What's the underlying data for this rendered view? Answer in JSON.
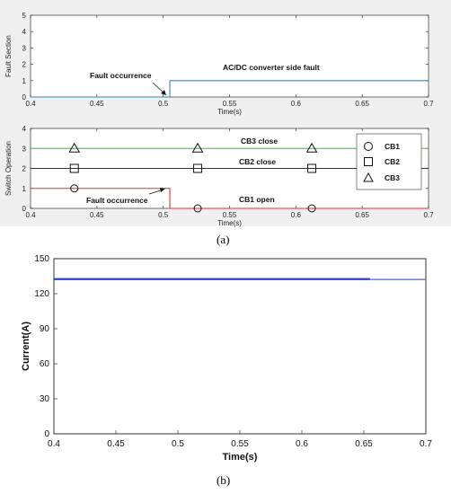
{
  "panel_labels": {
    "a": "(a)",
    "b": "(b)"
  },
  "chart_data": [
    {
      "id": "a1",
      "type": "line",
      "title": "",
      "xlabel": "Time(s)",
      "ylabel": "Fault Section",
      "xlim": [
        0.4,
        0.7
      ],
      "ylim": [
        0,
        5
      ],
      "xticks": [
        "0.4",
        "0.45",
        "0.5",
        "0.55",
        "0.6",
        "0.65",
        "0.7"
      ],
      "yticks": [
        "0",
        "1",
        "2",
        "3",
        "4",
        "5"
      ],
      "grid": false,
      "series": [
        {
          "color": "#2e86c1",
          "x": [
            0.4,
            0.505,
            0.505,
            0.7
          ],
          "y": [
            0,
            0,
            1,
            1
          ]
        }
      ],
      "annotations": [
        {
          "text": "Fault occurrence"
        },
        {
          "text": "AC/DC converter side fault"
        }
      ]
    },
    {
      "id": "a2",
      "type": "line",
      "title": "",
      "xlabel": "Time(s)",
      "ylabel": "Switch Operation",
      "xlim": [
        0.4,
        0.7
      ],
      "ylim": [
        0,
        4
      ],
      "xticks": [
        "0.4",
        "0.45",
        "0.5",
        "0.55",
        "0.6",
        "0.65",
        "0.7"
      ],
      "yticks": [
        "0",
        "1",
        "2",
        "3",
        "4"
      ],
      "grid": false,
      "legend_position": "right",
      "series": [
        {
          "name": "CB1",
          "marker": "circle",
          "color": "#e03030",
          "x": [
            0.4,
            0.505,
            0.505,
            0.7
          ],
          "y": [
            1,
            1,
            0,
            0
          ],
          "marker_x": [
            0.433,
            0.526,
            0.612
          ]
        },
        {
          "name": "CB2",
          "marker": "square",
          "color": "#2020d0",
          "x": [
            0.4,
            0.7
          ],
          "y": [
            2,
            2
          ],
          "marker_x": [
            0.433,
            0.526,
            0.612
          ]
        },
        {
          "name": "CB3",
          "marker": "triangle",
          "color": "#30c030",
          "x": [
            0.4,
            0.7
          ],
          "y": [
            3,
            3
          ],
          "marker_x": [
            0.433,
            0.526,
            0.612
          ]
        }
      ],
      "annotations": [
        {
          "text": "CB3 close"
        },
        {
          "text": "CB2 close"
        },
        {
          "text": "Fault occurrence"
        },
        {
          "text": "CB1 open"
        }
      ]
    },
    {
      "id": "b",
      "type": "line",
      "title": "",
      "xlabel": "Time(s)",
      "ylabel": "Current(A)",
      "xlim": [
        0.4,
        0.7
      ],
      "ylim": [
        0,
        150
      ],
      "xticks": [
        "0.4",
        "0.45",
        "0.5",
        "0.55",
        "0.6",
        "0.65",
        "0.7"
      ],
      "yticks": [
        "0",
        "30",
        "60",
        "90",
        "120",
        "150"
      ],
      "grid": false,
      "series": [
        {
          "color": "#2a3fd6",
          "x": [
            0.4,
            0.655
          ],
          "y": [
            132.5,
            132.5
          ],
          "width": 2.2
        },
        {
          "color": "#2a3fd6",
          "x": [
            0.655,
            0.7
          ],
          "y": [
            132.2,
            132.2
          ],
          "width": 1.0
        }
      ]
    }
  ],
  "colors": {
    "axes_bg_a": "#ffffff",
    "figure_bg_a": "#f0f0f0",
    "axis": "#333333"
  }
}
